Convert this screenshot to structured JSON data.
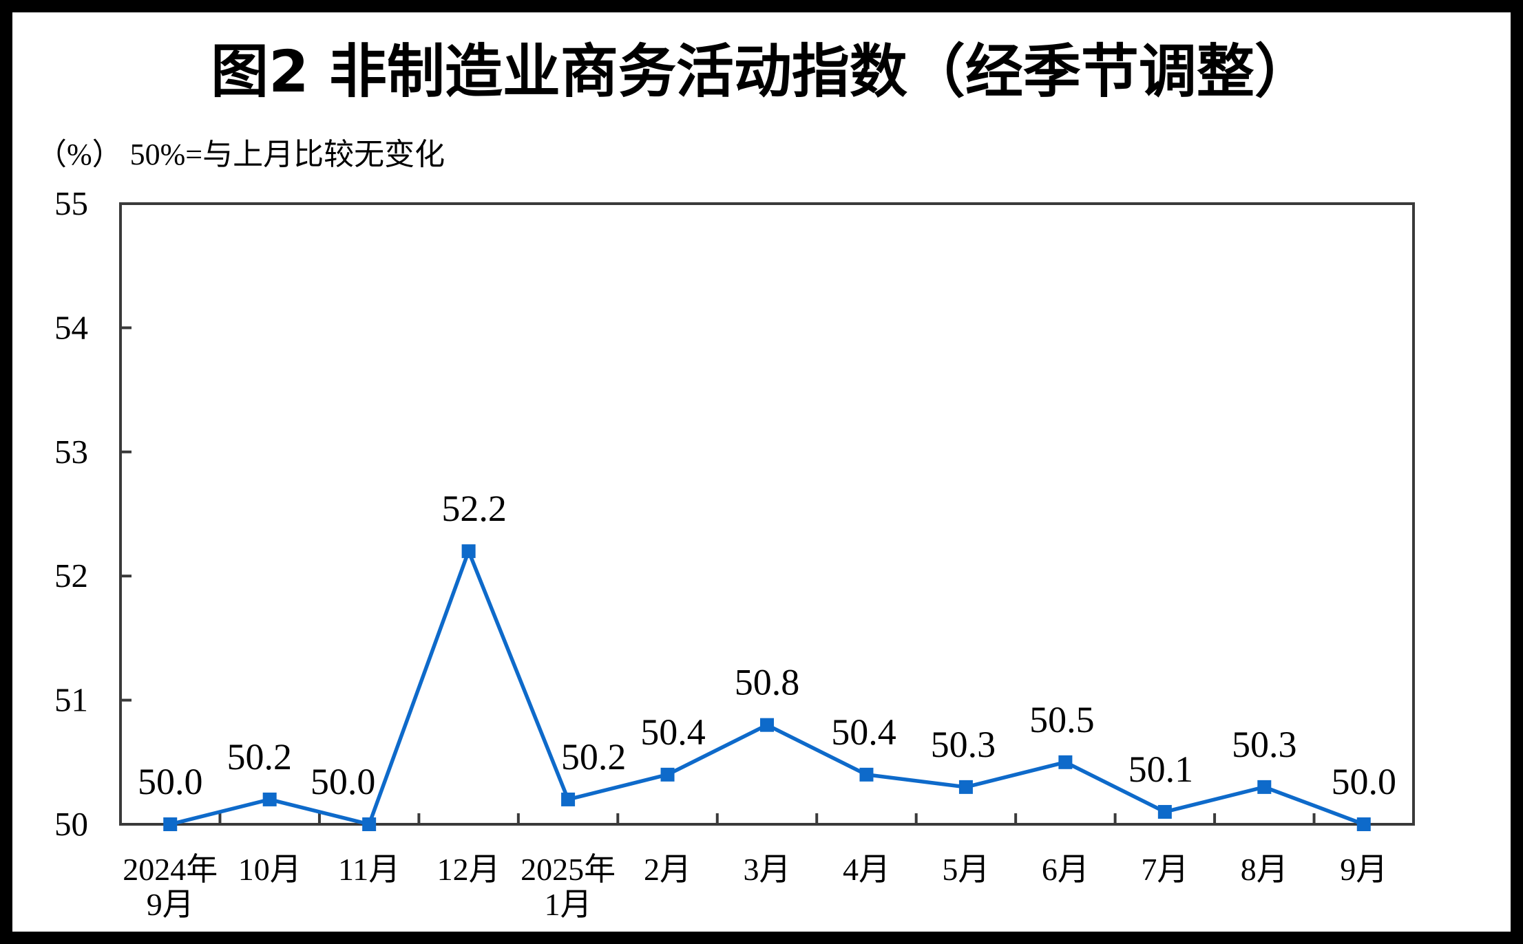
{
  "title": "图2 非制造业商务活动指数（经季节调整）",
  "subtitle": "（%） 50%=与上月比较无变化",
  "chart_data": {
    "type": "line",
    "title": "图2 非制造业商务活动指数（经季节调整）",
    "unit_note": "（%） 50%=与上月比较无变化",
    "categories": [
      "2024年\n9月",
      "10月",
      "11月",
      "12月",
      "2025年\n1月",
      "2月",
      "3月",
      "4月",
      "5月",
      "6月",
      "7月",
      "8月",
      "9月"
    ],
    "series": [
      {
        "name": "非制造业商务活动指数（经季节调整）",
        "values": [
          50.0,
          50.2,
          50.0,
          52.2,
          50.2,
          50.4,
          50.8,
          50.4,
          50.3,
          50.5,
          50.1,
          50.3,
          50.0
        ]
      }
    ],
    "data_labels": [
      "50.0",
      "50.2",
      "50.0",
      "52.2",
      "50.2",
      "50.4",
      "50.8",
      "50.4",
      "50.3",
      "50.5",
      "50.1",
      "50.3",
      "50.0"
    ],
    "ylim": [
      50,
      55
    ],
    "yticks": [
      50,
      51,
      52,
      53,
      54,
      55
    ],
    "xlabel": "",
    "ylabel": "",
    "grid": false,
    "legend": "none",
    "marker": "square",
    "line_color": "#0E6ACA",
    "axis_color": "#3a3a3a",
    "label_color": "#000000",
    "background_color": "#ffffff",
    "frame_color": "#000000"
  }
}
